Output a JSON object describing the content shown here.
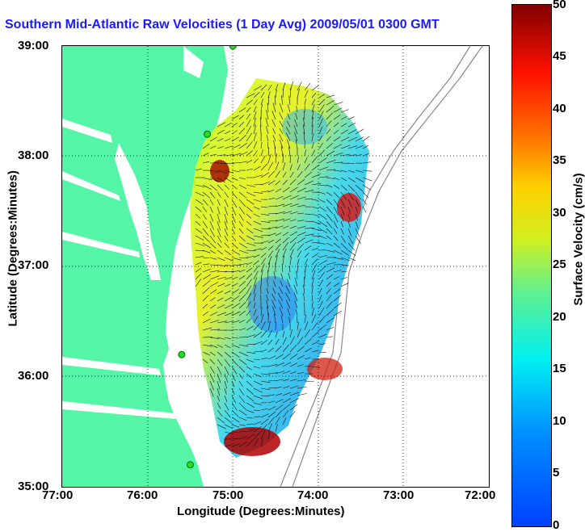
{
  "title": "Southern Mid-Atlantic Raw Velocities (1 Day Avg) 2009/05/01 0300 GMT",
  "axes": {
    "xlabel": "Longitude (Degrees:Minutes)",
    "ylabel": "Latitude (Degrees:Minutes)",
    "xticks": [
      "77:00",
      "76:00",
      "75:00",
      "74:00",
      "73:00",
      "72:00"
    ],
    "yticks": [
      "39:00",
      "38:00",
      "37:00",
      "36:00",
      "35:00"
    ]
  },
  "colorbar": {
    "label": "Surface Velocity (cm/s)",
    "ticks": [
      "50",
      "45",
      "40",
      "35",
      "30",
      "25",
      "20",
      "15",
      "10",
      "5",
      "0"
    ],
    "range": [
      0,
      50
    ]
  },
  "colors": {
    "land": "#55f5a8",
    "title": "#1a1aff",
    "station": "#22dd22"
  },
  "stations": [
    {
      "lon": -75.0,
      "lat": 39.0
    },
    {
      "lon": -75.3,
      "lat": 38.2
    },
    {
      "lon": -75.6,
      "lat": 36.2
    },
    {
      "lon": -75.5,
      "lat": 35.2
    }
  ]
}
